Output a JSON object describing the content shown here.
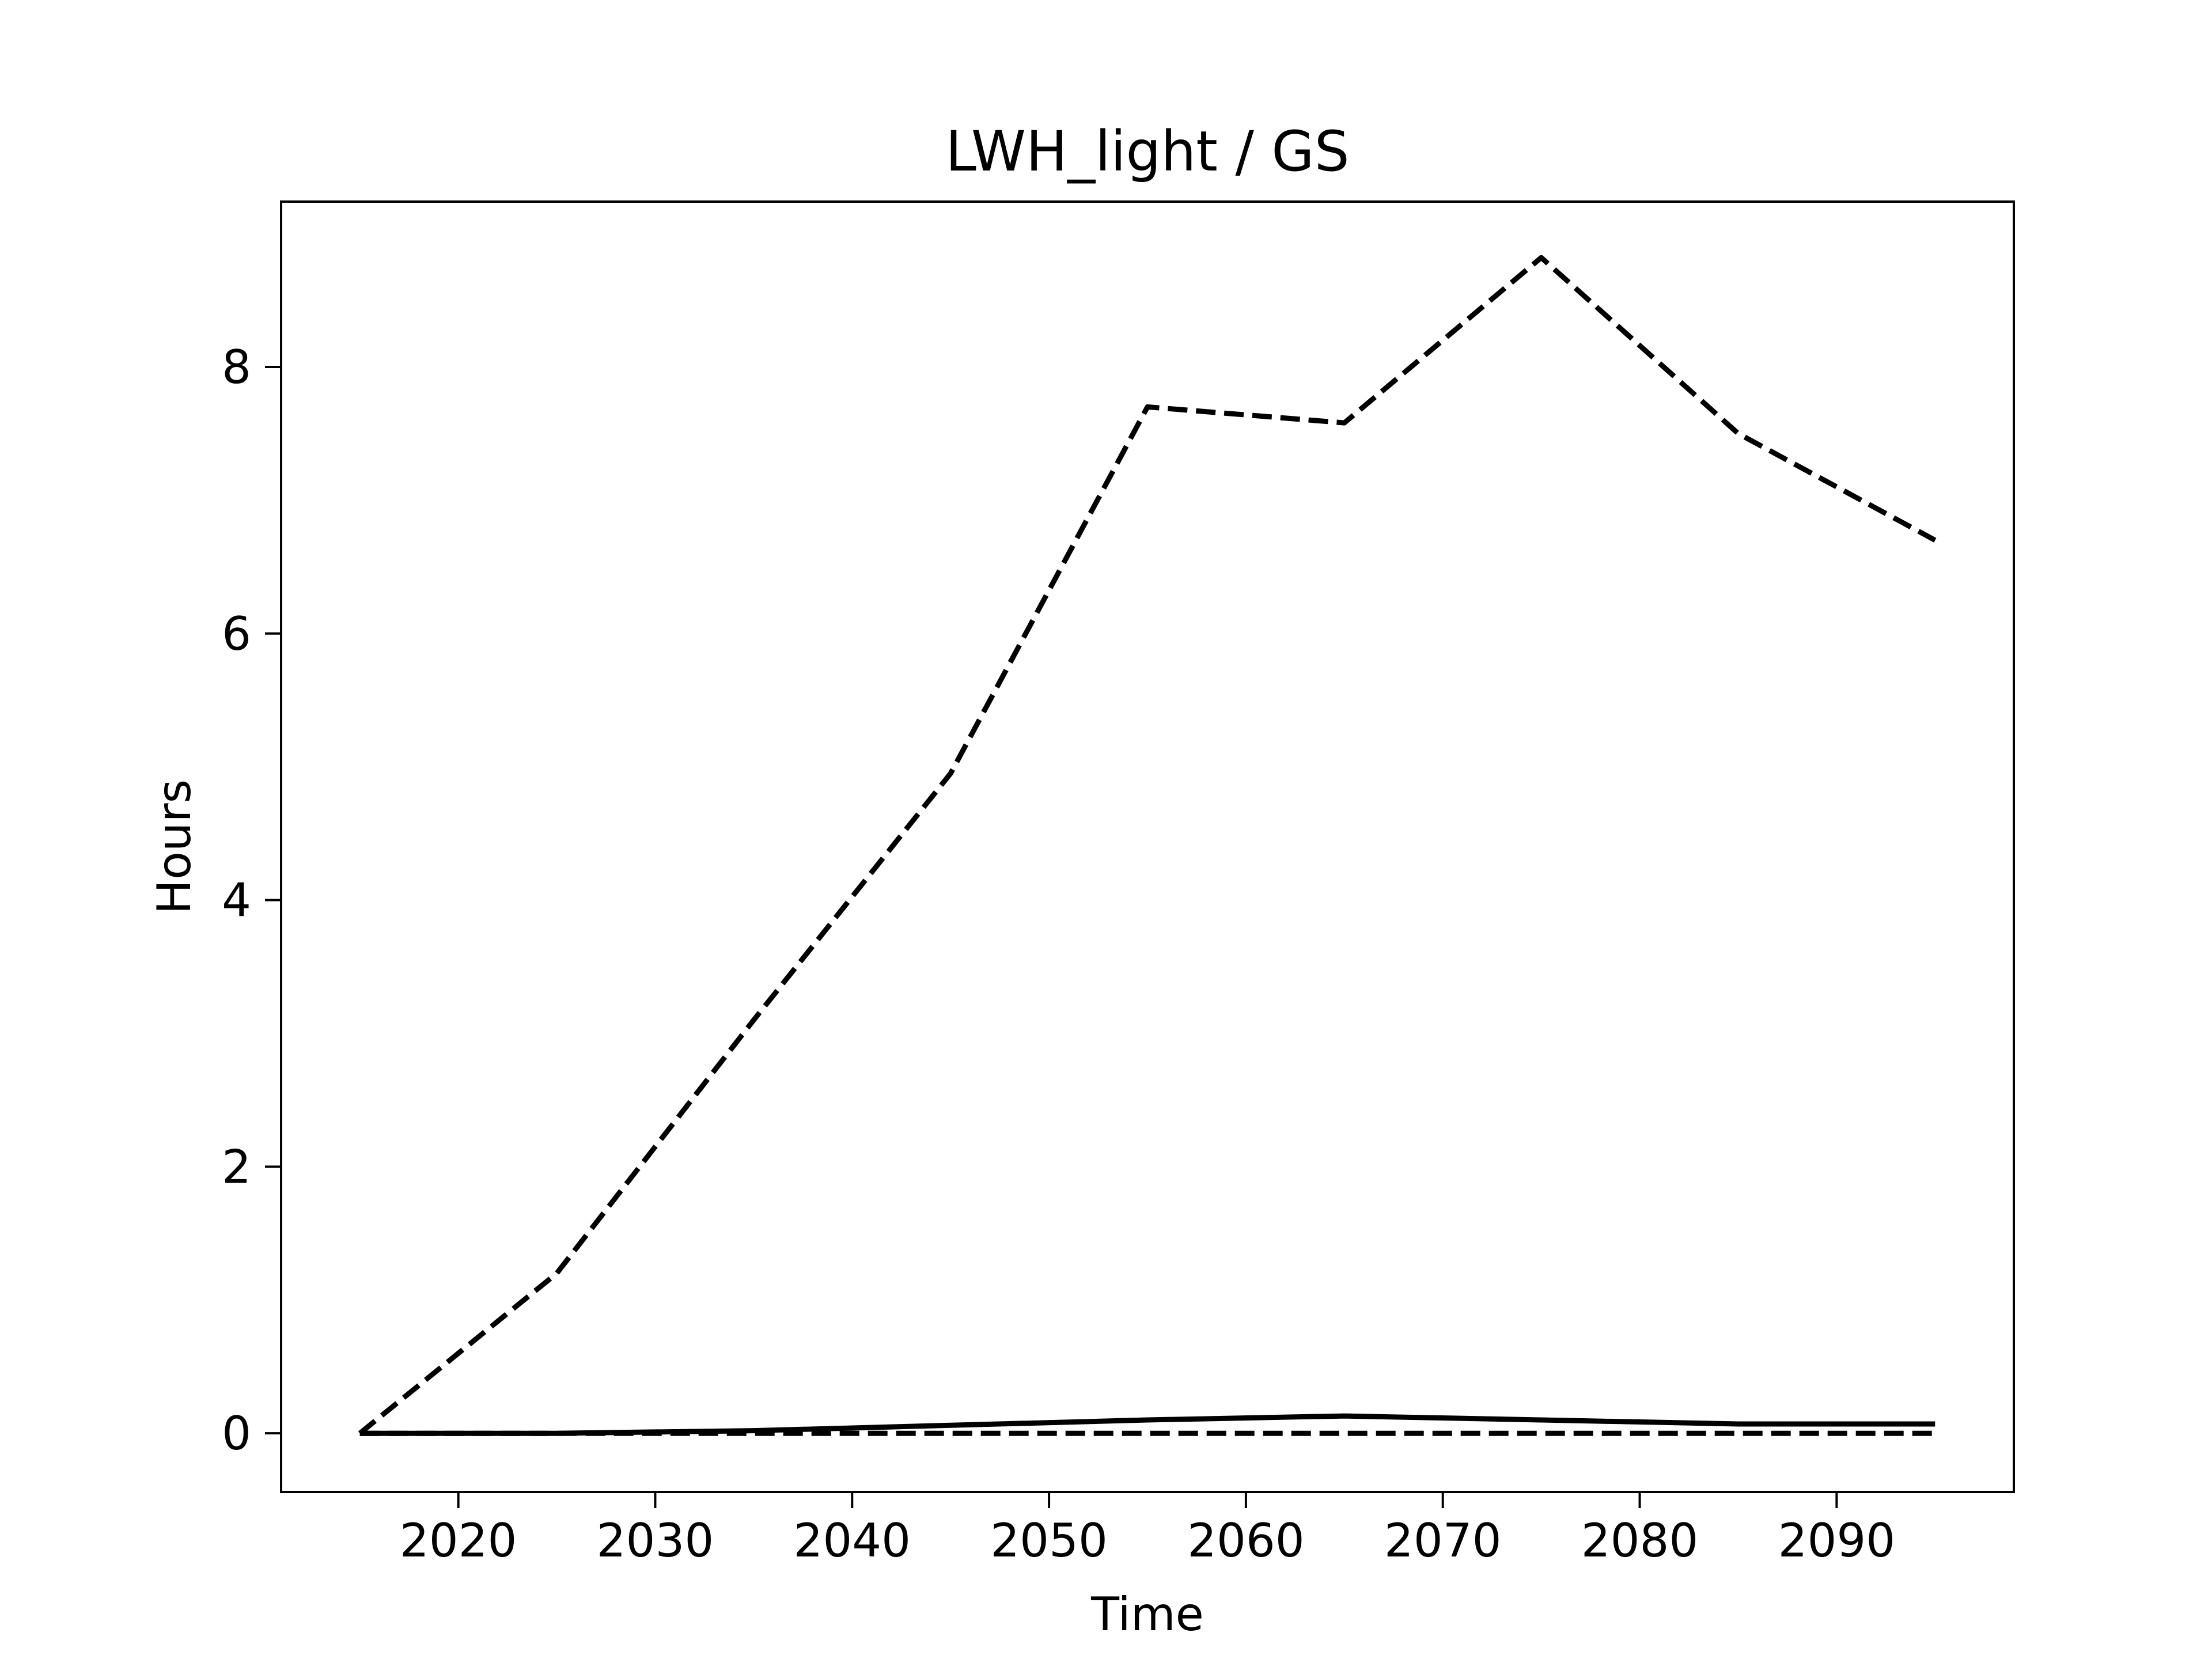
{
  "chart_data": {
    "type": "line",
    "title": "LWH_light / GS",
    "xlabel": "Time",
    "ylabel": "Hours",
    "xlim": [
      2011,
      2099
    ],
    "ylim": [
      -0.44,
      9.24
    ],
    "xticks": [
      2020,
      2030,
      2040,
      2050,
      2060,
      2070,
      2080,
      2090
    ],
    "yticks": [
      0,
      2,
      4,
      6,
      8
    ],
    "grid": false,
    "x": [
      2015,
      2025,
      2035,
      2045,
      2055,
      2065,
      2075,
      2085,
      2095
    ],
    "series": [
      {
        "style": "dashed",
        "color": "#000000",
        "values": [
          0,
          1.2,
          3.1,
          4.95,
          7.7,
          7.58,
          8.82,
          7.5,
          6.7
        ]
      },
      {
        "style": "solid",
        "color": "#000000",
        "values": [
          0,
          0,
          0.02,
          0.06,
          0.1,
          0.13,
          0.1,
          0.07,
          0.07
        ]
      },
      {
        "style": "dashed",
        "color": "#000000",
        "values": [
          0,
          0,
          0,
          0,
          0,
          0,
          0,
          0,
          0
        ]
      }
    ]
  }
}
